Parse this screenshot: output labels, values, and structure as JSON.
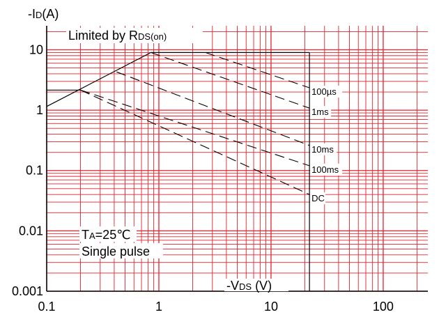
{
  "chart_data": {
    "type": "line",
    "x_scale": "log",
    "y_scale": "log",
    "xlim": [
      0.1,
      250
    ],
    "ylim": [
      0.001,
      25
    ],
    "grid": true,
    "xlabel_prefix": "-V",
    "xlabel_sub": "DS",
    "xlabel_suffix": " (V)",
    "ylabel_prefix": "-I",
    "ylabel_sub": "D",
    "ylabel_suffix": "(A)",
    "x_ticks": [
      {
        "value": 0.1,
        "label": "0.1"
      },
      {
        "value": 1,
        "label": "1"
      },
      {
        "value": 10,
        "label": "10"
      },
      {
        "value": 100,
        "label": "100"
      }
    ],
    "y_ticks": [
      {
        "value": 10,
        "label": "10"
      },
      {
        "value": 1,
        "label": "1"
      },
      {
        "value": 0.1,
        "label": "0.1"
      },
      {
        "value": 0.01,
        "label": "0.01"
      },
      {
        "value": 0.001,
        "label": "0.001"
      }
    ],
    "limit_line": {
      "label_prefix": "Limited by R",
      "label_sub": "DS(on)",
      "points": [
        [
          0.1,
          1.15
        ],
        [
          0.85,
          9.0
        ]
      ]
    },
    "series": [
      {
        "name": "100µs",
        "style": "dashed",
        "points": [
          [
            2.6,
            9.0
          ],
          [
            22,
            2.35
          ]
        ]
      },
      {
        "name": "1ms",
        "style": "dashed",
        "points": [
          [
            0.85,
            9.0
          ],
          [
            22,
            1.08
          ]
        ]
      },
      {
        "name": "10ms",
        "style": "dashed",
        "points": [
          [
            0.42,
            4.3
          ],
          [
            22,
            0.26
          ]
        ]
      },
      {
        "name": "100ms",
        "style": "dashed",
        "points": [
          [
            0.2,
            2.15
          ],
          [
            22,
            0.12
          ]
        ]
      },
      {
        "name": "DC",
        "style": "dashed",
        "points": [
          [
            0.2,
            2.15
          ],
          [
            22,
            0.04
          ]
        ]
      }
    ],
    "boundary_lines": [
      {
        "points": [
          [
            0.1,
            2.15
          ],
          [
            0.2,
            2.15
          ]
        ]
      },
      {
        "points": [
          [
            0.85,
            9.0
          ],
          [
            22,
            9.0
          ]
        ]
      },
      {
        "points": [
          [
            22,
            9.0
          ],
          [
            22,
            0.001
          ]
        ]
      }
    ],
    "annotation_lines": [
      {
        "prefix": "T",
        "sub": "A",
        "suffix": "=25℃"
      },
      {
        "prefix": "Single pulse",
        "sub": "",
        "suffix": ""
      }
    ]
  }
}
